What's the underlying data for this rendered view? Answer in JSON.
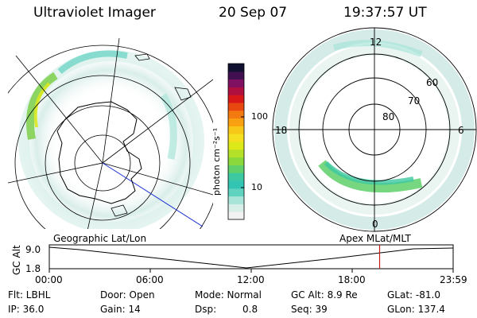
{
  "header": {
    "title": "Ultraviolet Imager",
    "date": "20 Sep 07",
    "time": "19:37:57 UT"
  },
  "left_map": {
    "label": "Geographic Lat/Lon"
  },
  "right_map": {
    "label": "Apex MLat/MLT",
    "mlt_labels": [
      "12",
      "18",
      "6",
      "0"
    ],
    "lat_labels": [
      "60",
      "70",
      "80"
    ]
  },
  "colorbar": {
    "unit_label": "photon cm⁻²s⁻¹",
    "ticks": [
      "100",
      "10"
    ],
    "colors": [
      "#f2f2f2",
      "#d8eee8",
      "#a8e4d8",
      "#5fd2c0",
      "#33c4b4",
      "#3cc8a0",
      "#5fd06a",
      "#8ad83c",
      "#b4e028",
      "#dce818",
      "#f4e020",
      "#f8c818",
      "#f8a010",
      "#f27a10",
      "#e84810",
      "#d81818",
      "#b01040",
      "#801060",
      "#401050",
      "#101030"
    ]
  },
  "timeline": {
    "y_label": "GC Alt",
    "y_ticks": [
      "9.0",
      "1.8"
    ],
    "x_ticks": [
      "00:00",
      "06:00",
      "12:00",
      "18:00",
      "23:59"
    ],
    "marker_time": "19:37"
  },
  "footer": {
    "row1": {
      "flt": "Flt: LBHL",
      "door": "Door: Open",
      "mode": "Mode: Normal",
      "gcalt": "GC Alt: 8.9 Re",
      "glat": "GLat: -81.0"
    },
    "row2": {
      "ip": "IP: 36.0",
      "gain": "Gain: 14",
      "dsp_label": "Dsp:",
      "dsp_value": "0.8",
      "seq": "Seq: 39",
      "glon": "GLon: 137.4"
    }
  }
}
